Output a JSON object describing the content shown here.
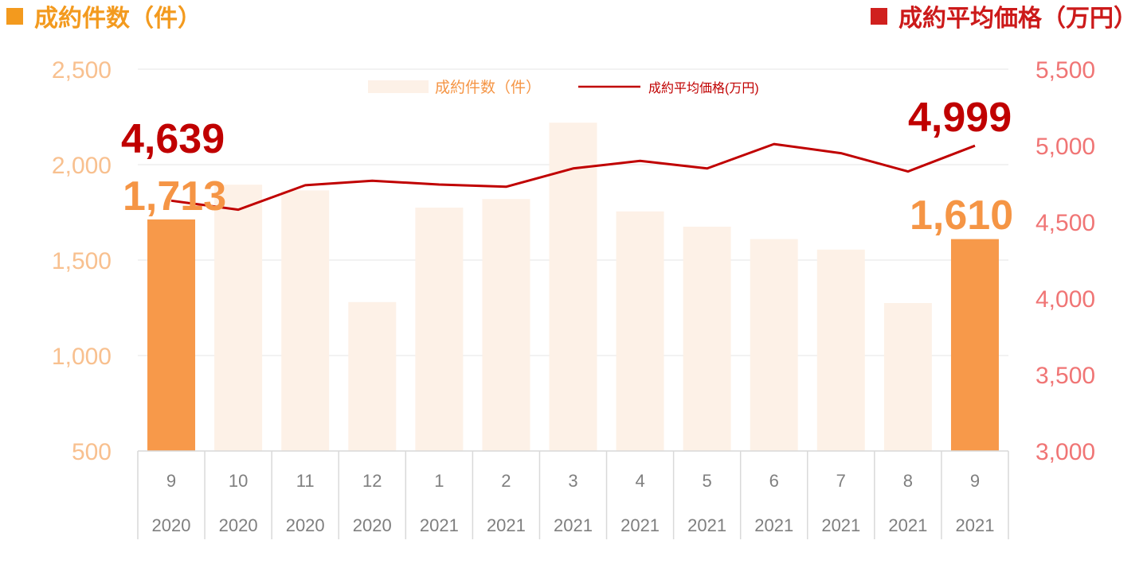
{
  "header": {
    "left_title": "成約件数（件）",
    "right_title": "成約平均価格（万円）"
  },
  "legend": {
    "bar_label": "成約件数（件）",
    "line_label": "成約平均価格(万円)"
  },
  "colors": {
    "bar_highlight": "#f7994a",
    "bar_faded": "#fdf1e7",
    "line": "#c00000",
    "left_axis_text": "#f8c08f",
    "right_axis_text": "#f07575",
    "category_text": "#7f7f7f",
    "value_label_bar": "#f59545",
    "value_label_line": "#c00000",
    "header_left": "#f39a1e",
    "header_right": "#cc1a1a"
  },
  "chart_data": {
    "type": "bar",
    "categories": [
      "9",
      "10",
      "11",
      "12",
      "1",
      "2",
      "3",
      "4",
      "5",
      "6",
      "7",
      "8",
      "9"
    ],
    "years": [
      "2020",
      "2020",
      "2020",
      "2020",
      "2021",
      "2021",
      "2021",
      "2021",
      "2021",
      "2021",
      "2021",
      "2021",
      "2021"
    ],
    "series": [
      {
        "name": "成約件数（件）",
        "type": "bar",
        "axis": "left",
        "values": [
          1713,
          1895,
          1865,
          1280,
          1775,
          1820,
          2220,
          1755,
          1675,
          1610,
          1555,
          1275,
          1610
        ],
        "highlighted": [
          true,
          false,
          false,
          false,
          false,
          false,
          false,
          false,
          false,
          false,
          false,
          false,
          true
        ]
      },
      {
        "name": "成約平均価格(万円)",
        "type": "line",
        "axis": "right",
        "values": [
          4639,
          4580,
          4740,
          4770,
          4745,
          4730,
          4850,
          4900,
          4850,
          5010,
          4950,
          4830,
          4999
        ]
      }
    ],
    "y_left": {
      "min": 500,
      "max": 2500,
      "ticks": [
        500,
        1000,
        1500,
        2000,
        2500
      ],
      "tick_labels": [
        "500",
        "1,000",
        "1,500",
        "2,000",
        "2,500"
      ]
    },
    "y_right": {
      "min": 3000,
      "max": 5500,
      "ticks": [
        3000,
        3500,
        4000,
        4500,
        5000,
        5500
      ],
      "tick_labels": [
        "3,000",
        "3,500",
        "4,000",
        "4,500",
        "5,000",
        "5,500"
      ]
    },
    "annotations": {
      "first_bar": "1,713",
      "last_bar": "1,610",
      "first_line": "4,639",
      "last_line": "4,999"
    },
    "gridlines": true,
    "legend_position": "top"
  }
}
